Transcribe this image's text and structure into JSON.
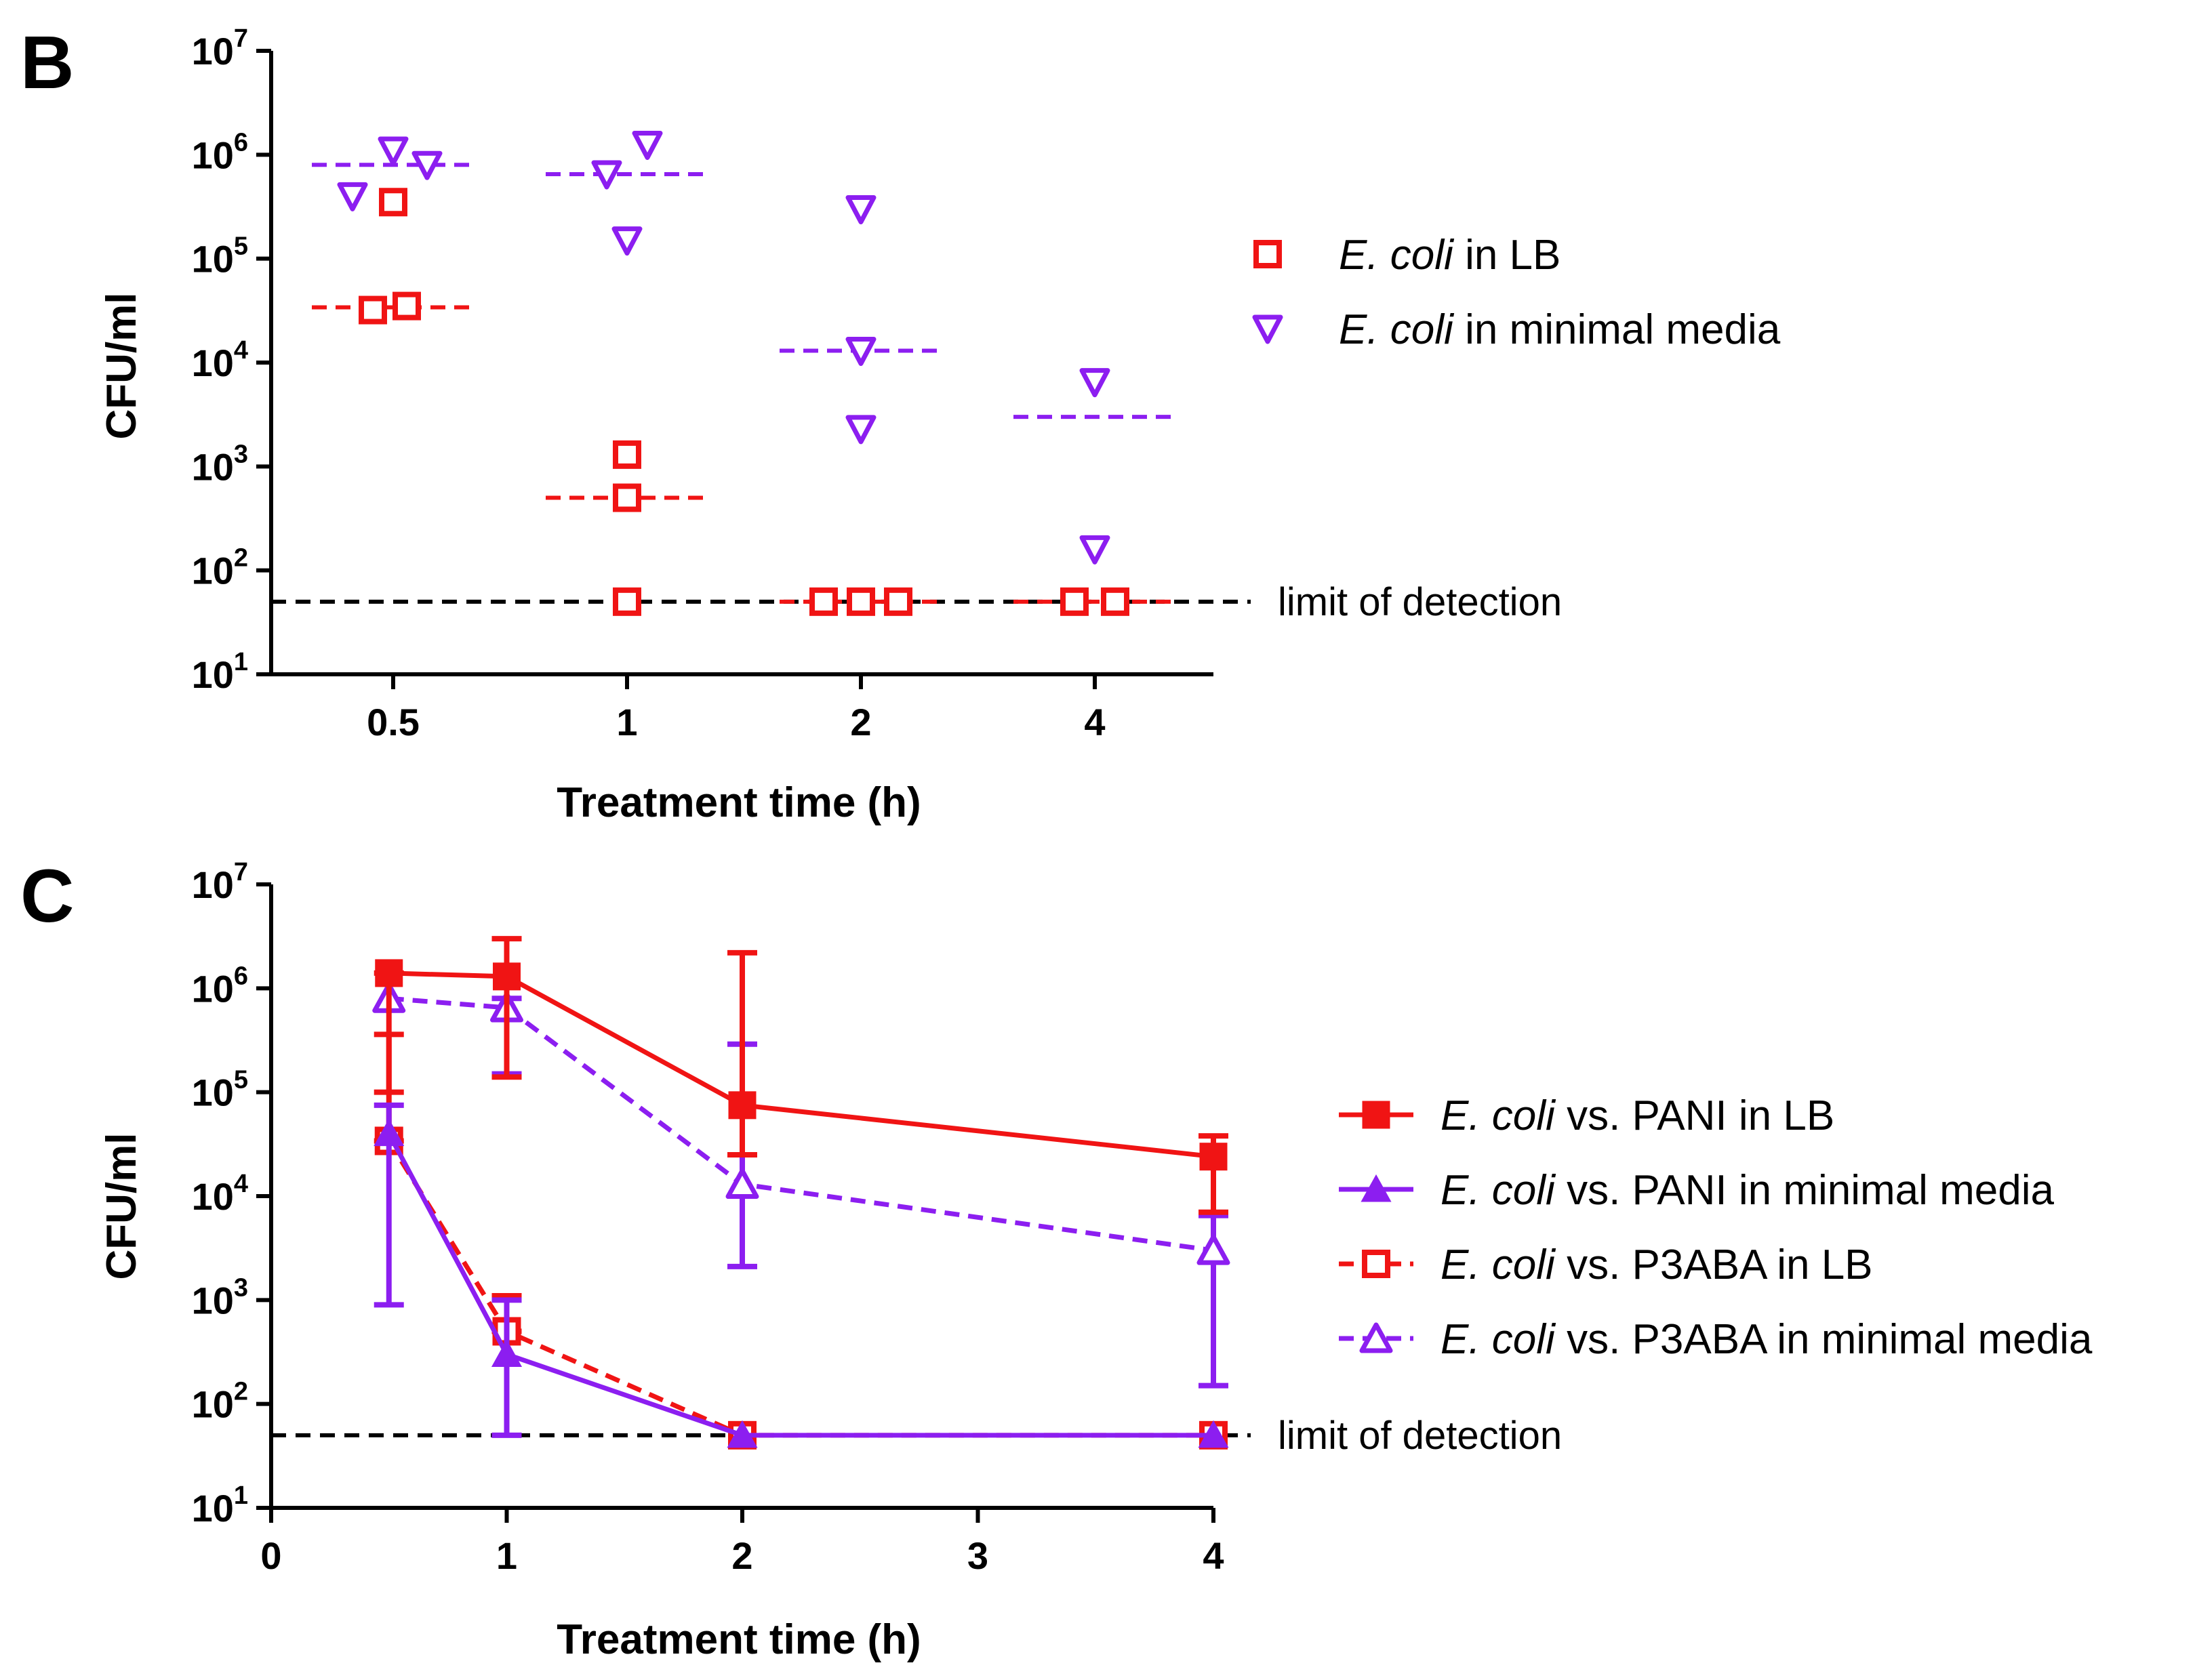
{
  "colors": {
    "red": "#f01414",
    "purple": "#8c1ef0",
    "black": "#000000"
  },
  "chart_data": [
    {
      "id": "B",
      "panel_label": "B",
      "type": "scatter",
      "title": "",
      "xlabel": "Treatment time (h)",
      "ylabel": "CFU/ml",
      "y_scale": "log",
      "ylim": [
        10,
        10000000
      ],
      "y_ticks": [
        {
          "base": "10",
          "exp": "1"
        },
        {
          "base": "10",
          "exp": "2"
        },
        {
          "base": "10",
          "exp": "3"
        },
        {
          "base": "10",
          "exp": "4"
        },
        {
          "base": "10",
          "exp": "5"
        },
        {
          "base": "10",
          "exp": "6"
        },
        {
          "base": "10",
          "exp": "7"
        }
      ],
      "categories": [
        "0.5",
        "1",
        "2",
        "4"
      ],
      "limit_of_detection": {
        "value": 50,
        "label": "limit of detection"
      },
      "series": [
        {
          "name": "E. coli in LB",
          "name_italic": "E. coli",
          "name_rest": " in LB",
          "marker": "square-open",
          "color": "#f01414",
          "points": [
            {
              "category": "0.5",
              "values": [
                32000,
                35000,
                350000
              ]
            },
            {
              "category": "1",
              "values": [
                50,
                500,
                1300
              ]
            },
            {
              "category": "2",
              "values": [
                50,
                50,
                50
              ]
            },
            {
              "category": "4",
              "values": [
                50,
                50
              ]
            }
          ],
          "means": [
            34000,
            500,
            50,
            50
          ]
        },
        {
          "name": "E. coli in minimal media",
          "name_italic": "E. coli",
          "name_rest": " in minimal media",
          "marker": "triangle-down-open",
          "color": "#8c1ef0",
          "points": [
            {
              "category": "0.5",
              "values": [
                400000,
                1100000,
                800000
              ]
            },
            {
              "category": "1",
              "values": [
                650000,
                1250000,
                150000
              ]
            },
            {
              "category": "2",
              "values": [
                300000,
                13000,
                2300
              ]
            },
            {
              "category": "4",
              "values": [
                6500,
                160
              ]
            }
          ],
          "means": [
            800000,
            650000,
            13000,
            3000
          ]
        }
      ]
    },
    {
      "id": "C",
      "panel_label": "C",
      "type": "line",
      "title": "",
      "xlabel": "Treatment time (h)",
      "ylabel": "CFU/ml",
      "y_scale": "log",
      "ylim": [
        10,
        10000000
      ],
      "xlim": [
        0,
        4
      ],
      "x_ticks": [
        "0",
        "1",
        "2",
        "3",
        "4"
      ],
      "y_ticks": [
        {
          "base": "10",
          "exp": "1"
        },
        {
          "base": "10",
          "exp": "2"
        },
        {
          "base": "10",
          "exp": "3"
        },
        {
          "base": "10",
          "exp": "4"
        },
        {
          "base": "10",
          "exp": "5"
        },
        {
          "base": "10",
          "exp": "6"
        },
        {
          "base": "10",
          "exp": "7"
        }
      ],
      "limit_of_detection": {
        "value": 50,
        "label": "limit of detection"
      },
      "series": [
        {
          "name": "E. coli vs. PANI in LB",
          "name_italic": "E. coli",
          "name_rest": " vs. PANI in LB",
          "marker": "square-filled",
          "dashed": false,
          "color": "#f01414",
          "x": [
            0.5,
            1,
            2,
            4
          ],
          "y": [
            1400000,
            1300000,
            75000,
            24000
          ],
          "err_high": [
            1400000,
            3000000,
            2200000,
            38000
          ],
          "err_low": [
            100000,
            140000,
            25000,
            7000
          ]
        },
        {
          "name": "E. coli vs. PANI in minimal media",
          "name_italic": "E. coli",
          "name_rest": " vs. PANI in minimal media",
          "marker": "triangle-up-filled",
          "dashed": false,
          "color": "#8c1ef0",
          "x": [
            0.5,
            1,
            2,
            4
          ],
          "y": [
            40000,
            300,
            50,
            50
          ],
          "err_high": [
            75000,
            1000,
            50,
            50
          ],
          "err_low": [
            900,
            50,
            50,
            50
          ]
        },
        {
          "name": "E. coli vs. P3ABA in LB",
          "name_italic": "E. coli",
          "name_rest": " vs. P3ABA in LB",
          "marker": "square-open",
          "dashed": true,
          "color": "#f01414",
          "x": [
            0.5,
            1,
            2,
            4
          ],
          "y": [
            34000,
            500,
            50,
            50
          ],
          "err_high": [
            360000,
            1100,
            50,
            50
          ],
          "err_low": [
            34000,
            500,
            50,
            50
          ]
        },
        {
          "name": "E. coli vs. P3ABA in minimal media",
          "name_italic": "E. coli",
          "name_rest": " vs. P3ABA in minimal media",
          "marker": "triangle-up-open",
          "dashed": true,
          "color": "#8c1ef0",
          "x": [
            0.5,
            1,
            2,
            4
          ],
          "y": [
            800000,
            650000,
            13000,
            3000
          ],
          "err_high": [
            800000,
            800000,
            290000,
            6500
          ],
          "err_low": [
            800000,
            150000,
            2100,
            150
          ]
        }
      ]
    }
  ]
}
